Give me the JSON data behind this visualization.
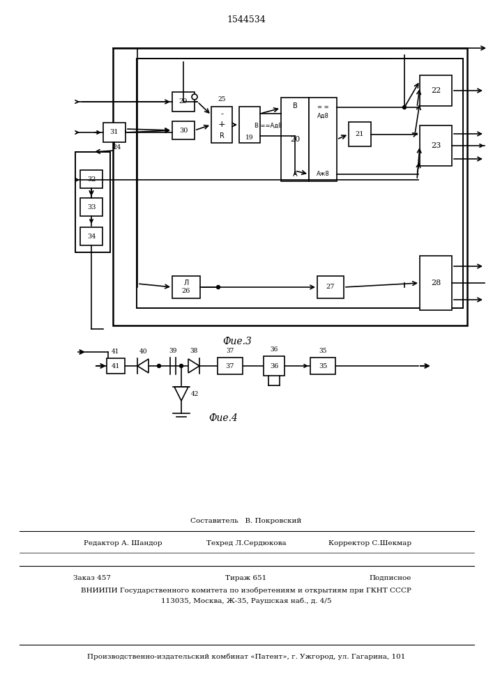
{
  "title": "1544534",
  "fig3_caption": "Фие.3",
  "fig4_caption": "Фие.4",
  "background_color": "#ffffff",
  "line_color": "#000000",
  "footer_lines": [
    "Составитель   В. Покровский",
    "Редактор А. Шандор",
    "Техред Л.Сердюкова",
    "Корректор С.Шекмар",
    "Заказ 457",
    "Тираж 651",
    "Подписное",
    "ВНИИПИ Государственного комитета по изобретениям и открытиям при ГКНТ СССР",
    "113035, Москва, Ж-35, Раушская наб., д. 4/5",
    "Производственно-издательский комбинат «Патент», г. Ужгород, ул. Гагарина, 101"
  ]
}
